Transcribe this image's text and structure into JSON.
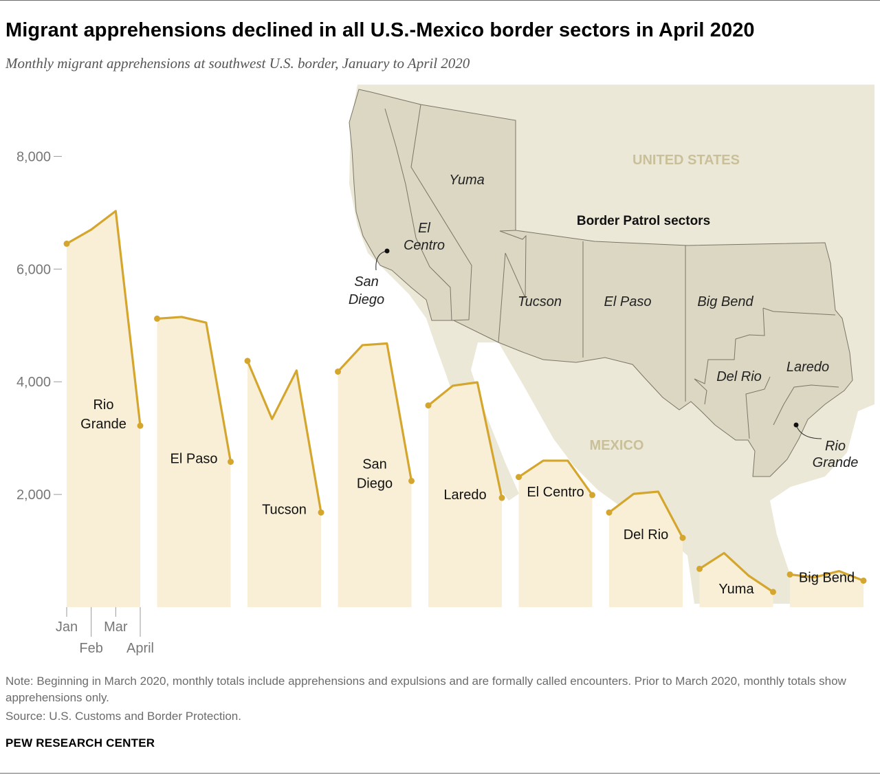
{
  "title": "Migrant apprehensions declined in all U.S.-Mexico border sectors in April 2020",
  "subtitle": "Monthly migrant apprehensions at southwest U.S. border, January to April 2020",
  "note": "Note: Beginning in March 2020, monthly totals include apprehensions and expulsions and are formally called encounters. Prior to March 2020, monthly totals show apprehensions only.",
  "source": "Source: U.S. Customs and Border Protection.",
  "org": "PEW RESEARCH CENTER",
  "colors": {
    "line": "#d4a62e",
    "area": "#f8efd6",
    "map_land": "#ece8d8",
    "map_sectors": "#dbd7c3",
    "map_label": "#c9bf98"
  },
  "map": {
    "country_us": "UNITED STATES",
    "country_mx": "MEXICO",
    "legend_title": "Border Patrol sectors",
    "sector_labels": [
      "Yuma",
      "El",
      "Centro",
      "San",
      "Diego",
      "Tucson",
      "El Paso",
      "Big Bend",
      "Del Rio",
      "Laredo",
      "Rio",
      "Grande"
    ]
  },
  "chart_data": {
    "type": "area",
    "title": "Migrant apprehensions declined in all U.S.-Mexico border sectors in April 2020",
    "ylabel": "Monthly migrant apprehensions",
    "ylim": [
      0,
      9000
    ],
    "yticks": [
      2000,
      4000,
      6000,
      8000
    ],
    "ytick_labels": [
      "2,000",
      "4,000",
      "6,000",
      "8,000"
    ],
    "months": [
      "Jan",
      "Feb",
      "Mar",
      "April"
    ],
    "series": [
      {
        "name": "Rio Grande",
        "label_lines": [
          "Rio",
          "Grande"
        ],
        "values": [
          6450,
          6700,
          7030,
          3220
        ]
      },
      {
        "name": "El Paso",
        "label_lines": [
          "El Paso"
        ],
        "values": [
          5120,
          5150,
          5050,
          2580
        ]
      },
      {
        "name": "Tucson",
        "label_lines": [
          "Tucson"
        ],
        "values": [
          4370,
          3340,
          4200,
          1680
        ]
      },
      {
        "name": "San Diego",
        "label_lines": [
          "San",
          "Diego"
        ],
        "values": [
          4180,
          4650,
          4680,
          2240
        ]
      },
      {
        "name": "Laredo",
        "label_lines": [
          "Laredo"
        ],
        "values": [
          3580,
          3930,
          3990,
          1940
        ]
      },
      {
        "name": "El Centro",
        "label_lines": [
          "El Centro"
        ],
        "values": [
          2310,
          2600,
          2600,
          1990
        ]
      },
      {
        "name": "Del Rio",
        "label_lines": [
          "Del Rio"
        ],
        "values": [
          1680,
          2010,
          2050,
          1230
        ]
      },
      {
        "name": "Yuma",
        "label_lines": [
          "Yuma"
        ],
        "values": [
          680,
          960,
          560,
          270
        ]
      },
      {
        "name": "Big Bend",
        "label_lines": [
          "Big Bend"
        ],
        "values": [
          580,
          530,
          640,
          470
        ]
      }
    ]
  }
}
